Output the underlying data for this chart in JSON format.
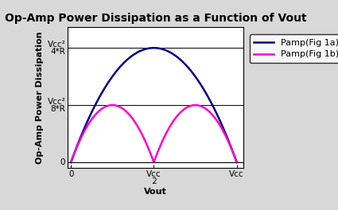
{
  "title": "Op-Amp Power Dissipation as a Function of Vout",
  "xlabel": "Vout",
  "ylabel": "Op-Amp Power Dissipation",
  "color_fig1a": "#00008B",
  "color_fig1b": "#FF00CC",
  "legend_labels": [
    "Pamp(Fig 1a)",
    "Pamp(Fig 1b)"
  ],
  "ytick_values": [
    1.0,
    0.5,
    0.0
  ],
  "xtick_values": [
    0.0,
    0.5,
    1.0
  ],
  "hline_values": [
    1.0,
    0.5
  ],
  "ylim": [
    -0.05,
    1.18
  ],
  "xlim": [
    -0.02,
    1.04
  ],
  "background_color": "#FFFFFF",
  "outer_bg": "#D8D8D8",
  "title_fontsize": 10,
  "axis_label_fontsize": 8,
  "tick_label_fontsize": 7.5,
  "legend_fontsize": 8,
  "linewidth_curves": 1.8
}
